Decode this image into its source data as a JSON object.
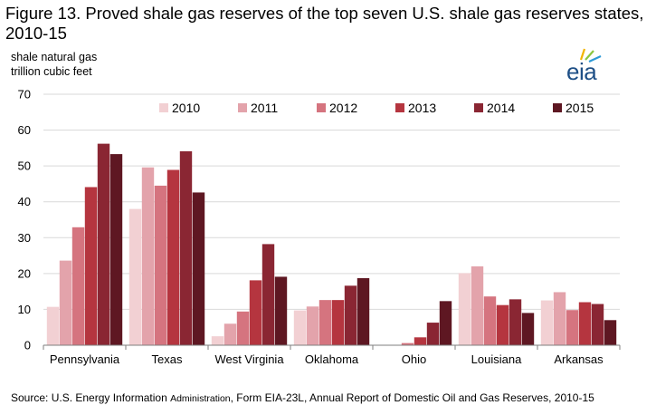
{
  "title": "Figure 13. Proved shale gas reserves of the top seven U.S. shale gas reserves states, 2010-15",
  "ylabel_line1": "shale natural gas",
  "ylabel_line2": "trillion cubic feet",
  "source_part1": "Source: U.S. Energy Information ",
  "source_part2": "Administration",
  "source_part3": ", Form EIA-23L, Annual Report of Domestic Oil and Gas Reserves, 2010-15",
  "logo_text": "eia",
  "chart_data": {
    "type": "bar",
    "title": "Figure 13. Proved shale gas reserves of the top seven U.S. shale gas reserves states, 2010-15",
    "ylabel": "shale natural gas trillion cubic feet",
    "ylim": [
      0,
      70
    ],
    "yticks": [
      0,
      10,
      20,
      30,
      40,
      50,
      60,
      70
    ],
    "grid": true,
    "legend_position": "top",
    "categories": [
      "Pennsylvania",
      "Texas",
      "West Virginia",
      "Oklahoma",
      "Ohio",
      "Louisiana",
      "Arkansas"
    ],
    "series": [
      {
        "name": "2010",
        "color": "#f2d0d3",
        "values": [
          10.7,
          38.0,
          2.5,
          9.7,
          0.0,
          20.1,
          12.5
        ]
      },
      {
        "name": "2011",
        "color": "#e3a3ab",
        "values": [
          23.6,
          49.6,
          6.0,
          10.8,
          0.0,
          22.0,
          14.8
        ]
      },
      {
        "name": "2012",
        "color": "#d5747f",
        "values": [
          32.9,
          44.5,
          9.4,
          12.6,
          0.6,
          13.6,
          9.8
        ]
      },
      {
        "name": "2013",
        "color": "#b5353f",
        "values": [
          44.1,
          48.9,
          18.1,
          12.6,
          2.2,
          11.2,
          12.0
        ]
      },
      {
        "name": "2014",
        "color": "#8a2633",
        "values": [
          56.2,
          54.1,
          28.2,
          16.6,
          6.3,
          12.8,
          11.5
        ]
      },
      {
        "name": "2015",
        "color": "#5e1722",
        "values": [
          53.3,
          42.6,
          19.1,
          18.7,
          12.3,
          9.0,
          7.0
        ]
      }
    ]
  }
}
